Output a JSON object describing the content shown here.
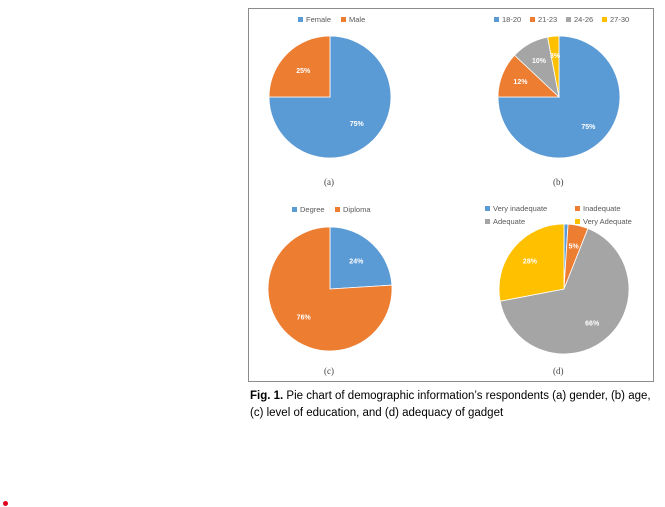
{
  "figure": {
    "caption_label": "Fig. 1.",
    "caption_text": " Pie chart of demographic information’s respondents (a) gender, (b) age, (c) level of education, and (d) adequacy of gadget"
  },
  "chart_data": [
    {
      "type": "pie",
      "panel_label": "(a)",
      "legend_position": "top",
      "categories": [
        "Female",
        "Male"
      ],
      "values": [
        75,
        25
      ],
      "data_labels": [
        "75%",
        "25%"
      ],
      "colors": [
        "#5b9bd5",
        "#ed7d31"
      ]
    },
    {
      "type": "pie",
      "panel_label": "(b)",
      "legend_position": "top",
      "categories": [
        "18-20",
        "21-23",
        "24-26",
        "27-30"
      ],
      "values": [
        75,
        12,
        10,
        3
      ],
      "data_labels": [
        "75%",
        "12%",
        "10%",
        "3%"
      ],
      "colors": [
        "#5b9bd5",
        "#ed7d31",
        "#a5a5a5",
        "#ffc000"
      ]
    },
    {
      "type": "pie",
      "panel_label": "(c)",
      "legend_position": "top",
      "categories": [
        "Degree",
        "Diploma"
      ],
      "values": [
        24,
        76
      ],
      "data_labels": [
        "24%",
        "76%"
      ],
      "colors": [
        "#5b9bd5",
        "#ed7d31"
      ]
    },
    {
      "type": "pie",
      "panel_label": "(d)",
      "legend_position": "top",
      "categories": [
        "Very inadequate",
        "Inadequate",
        "Adequate",
        "Very Adequate"
      ],
      "values": [
        1,
        5,
        66,
        28
      ],
      "data_labels": [
        "",
        "5%",
        "66%",
        "28%"
      ],
      "colors": [
        "#5b9bd5",
        "#ed7d31",
        "#a5a5a5",
        "#ffc000"
      ]
    }
  ]
}
